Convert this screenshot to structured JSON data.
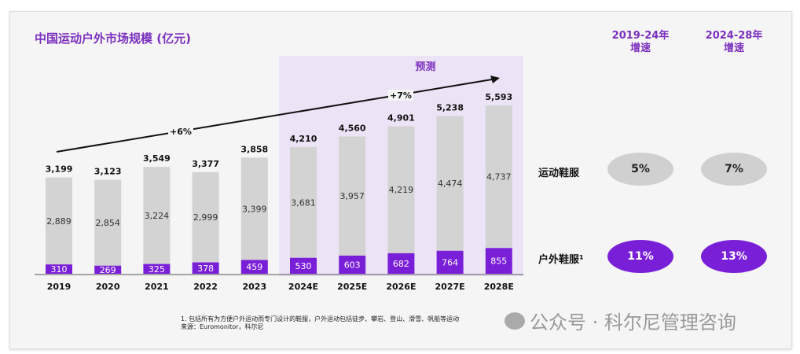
{
  "title": "中国运动户外市场规模 (亿元)",
  "chart_data": {
    "type": "bar",
    "stacked": true,
    "categories": [
      "2019",
      "2020",
      "2021",
      "2022",
      "2023",
      "2024E",
      "2025E",
      "2026E",
      "2027E",
      "2028E"
    ],
    "series": [
      {
        "values": [
          310,
          269,
          325,
          378,
          459,
          530,
          603,
          682,
          764,
          855
        ],
        "color": "#7a1fd8"
      },
      {
        "values": [
          2889,
          2854,
          3224,
          2999,
          3399,
          3681,
          3957,
          4219,
          4474,
          4737
        ],
        "color": "#d3d3d3"
      }
    ],
    "totals": [
      "3,199",
      "3,123",
      "3,549",
      "3,377",
      "3,858",
      "4,210",
      "4,560",
      "4,901",
      "5,238",
      "5,593"
    ],
    "forecast_label": "预测",
    "forecast_start": "2024E",
    "forecast_bg": "#ece3f7",
    "annotations": [
      {
        "text": "+6%"
      },
      {
        "text": "+7%"
      }
    ]
  },
  "growth": {
    "headers": [
      "2019-24年\n增速",
      "2024-28年\n增速"
    ],
    "header_lines": [
      [
        "2019-24年",
        "增速"
      ],
      [
        "2024-28年",
        "增速"
      ]
    ],
    "rows": [
      {
        "label": "运动鞋服",
        "values": [
          "5%",
          "7%"
        ]
      },
      {
        "label": "户外鞋服¹",
        "values": [
          "11%",
          "13%"
        ]
      }
    ]
  },
  "footnote": [
    "1. 包括所有为方便户外运动而专门设计的鞋服，户外运动包括徒步、攀岩、登山、滑雪、帆船等运动",
    "来源：Euromonitor，科尔尼"
  ],
  "watermark": "公众号 · 科尔尼管理咨询"
}
